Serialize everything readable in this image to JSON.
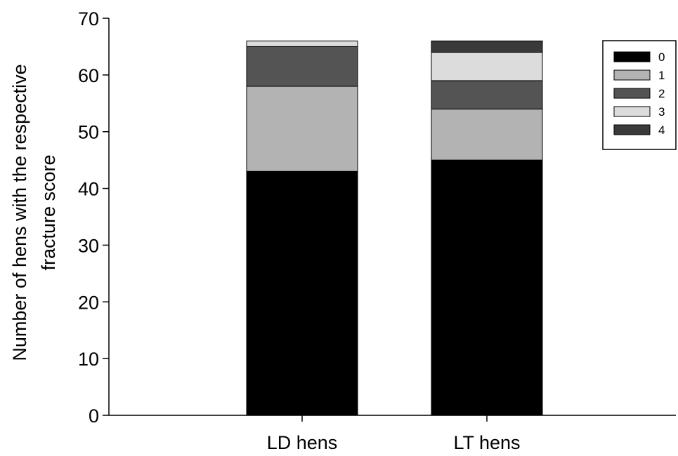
{
  "chart_data": {
    "type": "bar",
    "stacked": true,
    "categories": [
      "LD hens",
      "LT hens"
    ],
    "series": [
      {
        "name": "0",
        "values": [
          43,
          45
        ],
        "color": "#000000"
      },
      {
        "name": "1",
        "values": [
          15,
          9
        ],
        "color": "#b3b3b3"
      },
      {
        "name": "2",
        "values": [
          7,
          5
        ],
        "color": "#545454"
      },
      {
        "name": "3",
        "values": [
          1,
          5
        ],
        "color": "#dcdcdc"
      },
      {
        "name": "4",
        "values": [
          0,
          2
        ],
        "color": "#3a3a3a"
      }
    ],
    "title": "",
    "xlabel": "",
    "ylabel_lines": [
      "Number  of hens with the respective",
      "fracture score"
    ],
    "ylim": [
      0,
      70
    ],
    "yticks": [
      0,
      10,
      20,
      30,
      40,
      50,
      60,
      70
    ],
    "grid": false,
    "legend_position": "top-right"
  }
}
